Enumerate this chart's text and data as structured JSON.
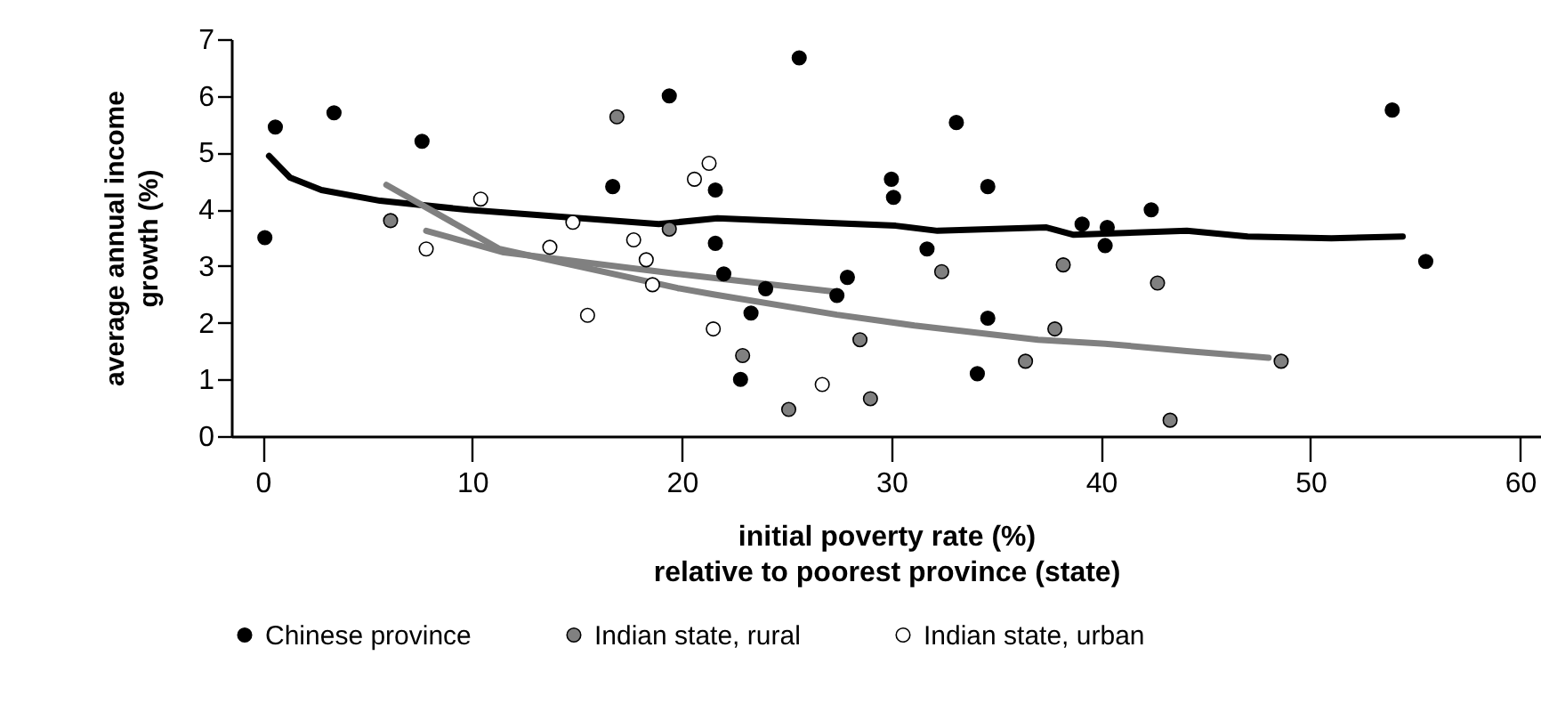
{
  "chart_data": {
    "type": "scatter",
    "xlabel": "initial poverty rate (%)\nrelative to poorest province (state)",
    "ylabel": "average annual income\ngrowth (%)",
    "xlim": [
      -1.5,
      61
    ],
    "xticks": [
      0,
      10,
      20,
      30,
      40,
      50,
      60
    ],
    "ylim": [
      0,
      7
    ],
    "yticks": [
      0,
      1,
      2,
      3,
      4,
      5,
      6,
      7
    ],
    "grid": false,
    "legend": "bottom",
    "series": [
      {
        "name": "Chinese province",
        "color": "#000000",
        "marker": "circle",
        "x": [
          0.1,
          0.6,
          3.4,
          7.6,
          16.7,
          19.4,
          25.6,
          21.6,
          21.6,
          22.0,
          24.0,
          23.3,
          22.8,
          27.9,
          27.4,
          30.0,
          30.1,
          31.7,
          33.1,
          34.6,
          34.6,
          34.1,
          39.1,
          40.3,
          40.2,
          42.4,
          53.9,
          55.5
        ],
        "values": [
          3.5,
          5.45,
          5.7,
          5.2,
          4.4,
          6.0,
          6.67,
          4.34,
          3.4,
          2.86,
          2.6,
          2.17,
          1.0,
          2.8,
          2.48,
          4.53,
          4.21,
          3.3,
          5.53,
          4.4,
          2.08,
          1.1,
          3.74,
          3.68,
          3.36,
          3.99,
          5.75,
          3.08
        ]
      },
      {
        "name": "Indian state, rural",
        "color": "#808080",
        "marker": "circle",
        "x": [
          6.1,
          16.9,
          19.4,
          22.9,
          25.1,
          28.5,
          29.0,
          32.4,
          38.2,
          37.8,
          36.4,
          42.7,
          43.3,
          48.6
        ],
        "values": [
          3.8,
          5.63,
          3.65,
          1.42,
          0.47,
          1.7,
          0.66,
          2.9,
          3.02,
          1.89,
          1.32,
          2.7,
          0.28,
          1.32
        ]
      },
      {
        "name": "Indian state, urban",
        "color": "#ffffff",
        "marker": "circle",
        "x": [
          7.8,
          10.4,
          13.7,
          14.8,
          15.5,
          17.7,
          18.3,
          18.6,
          20.6,
          21.3,
          21.5,
          26.7
        ],
        "values": [
          3.3,
          4.18,
          3.33,
          3.77,
          2.13,
          3.46,
          3.11,
          2.67,
          4.53,
          4.81,
          1.89,
          0.91
        ]
      },
      {
        "type": "line",
        "color": "#000000",
        "marker": "none",
        "x": [
          0.3,
          1.3,
          2.8,
          5.6,
          9.8,
          18.9,
          21.7,
          30.2,
          32.2,
          37.4,
          38.7,
          44.1,
          47,
          51,
          54.4
        ],
        "values": [
          4.94,
          4.56,
          4.34,
          4.15,
          3.99,
          3.74,
          3.84,
          3.71,
          3.62,
          3.68,
          3.55,
          3.62,
          3.52,
          3.49,
          3.52
        ]
      },
      {
        "type": "line",
        "color": "#808080",
        "marker": "none",
        "x": [
          5.9,
          11.3,
          19.8,
          21.5,
          27.4,
          31.1,
          37,
          40.2,
          44.1,
          48
        ],
        "values": [
          4.43,
          3.3,
          2.61,
          2.5,
          2.14,
          1.95,
          1.7,
          1.63,
          1.5,
          1.38
        ]
      },
      {
        "type": "line",
        "color": "#808080",
        "marker": "none",
        "x": [
          7.8,
          11.5,
          19.8,
          27.2
        ],
        "values": [
          3.62,
          3.24,
          2.86,
          2.55
        ]
      }
    ]
  }
}
